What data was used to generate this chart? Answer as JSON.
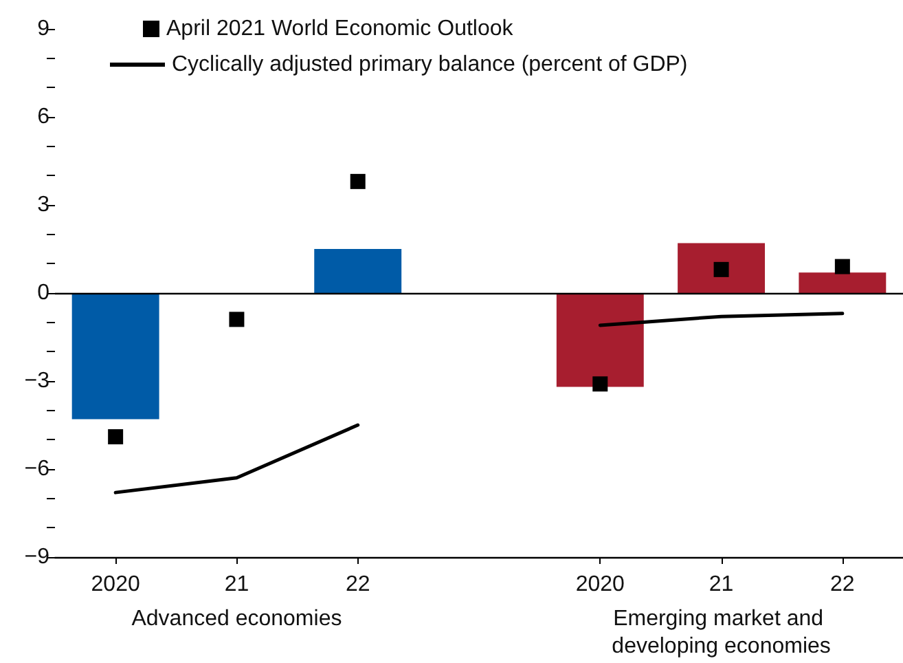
{
  "chart_data": {
    "type": "bar",
    "categories": [
      "2020",
      "21",
      "22",
      null,
      "2020",
      "21",
      "22"
    ],
    "series": [
      {
        "colors": [
          "#005ba7",
          "#005ba7",
          "#005ba7",
          null,
          "#a71e2f",
          "#a71e2f",
          "#a71e2f"
        ],
        "values": [
          -4.3,
          null,
          1.5,
          null,
          -3.2,
          1.7,
          0.7
        ]
      },
      {
        "type": "scatter",
        "name": "April 2021 World Economic Outlook",
        "color": "#000000",
        "marker": "square",
        "values": [
          -4.9,
          -0.9,
          3.8,
          null,
          -3.1,
          0.8,
          0.9
        ]
      },
      {
        "type": "line",
        "name": "Cyclically adjusted primary balance (percent of GDP)",
        "color": "#000000",
        "marker": "none",
        "values": [
          -6.8,
          -6.3,
          -4.5,
          null,
          -1.1,
          -0.8,
          -0.7
        ]
      }
    ],
    "ylim": [
      -9,
      9
    ],
    "yticks": [
      -9,
      {
        "value": -8,
        "label": null
      },
      {
        "value": -7,
        "label": null
      },
      -6,
      {
        "value": -5,
        "label": null
      },
      {
        "value": -4,
        "label": null
      },
      -3,
      {
        "value": -2,
        "label": null
      },
      {
        "value": -1,
        "label": null
      },
      0,
      {
        "value": 1,
        "label": null
      },
      {
        "value": 2,
        "label": null
      },
      3,
      {
        "value": 4,
        "label": null
      },
      {
        "value": 5,
        "label": null
      },
      6,
      {
        "value": 7,
        "label": null
      },
      {
        "value": 8,
        "label": null
      },
      9
    ],
    "grid": false,
    "legend": "top left",
    "ref_lines": [
      {
        "axis": "y",
        "value": 0,
        "color": "#000000"
      }
    ],
    "annotations": [
      "Advanced economies",
      "Emerging market and developing economies"
    ]
  }
}
